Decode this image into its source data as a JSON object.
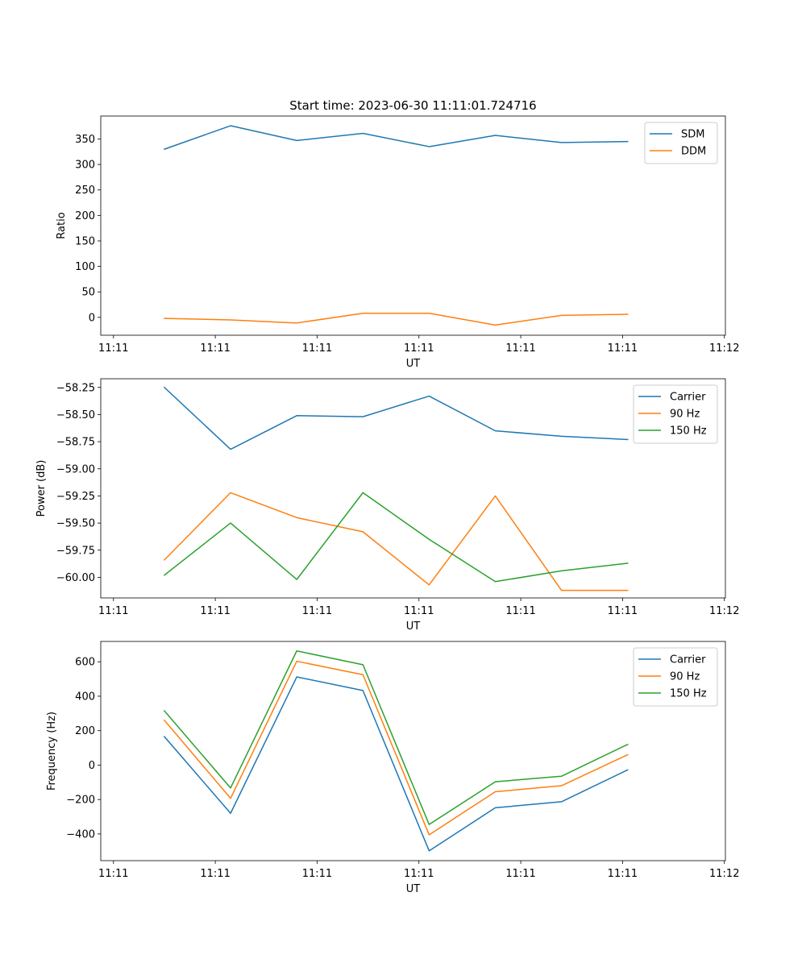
{
  "figure": {
    "title": "Start time: 2023-06-30 11:11:01.724716"
  },
  "chart_data": [
    {
      "type": "line",
      "xlabel": "UT",
      "ylabel": "Ratio",
      "x_tick_labels": [
        "11:11",
        "11:11",
        "11:11",
        "11:11",
        "11:11",
        "11:11",
        "11:12"
      ],
      "x_ticks": [
        0,
        1,
        2,
        3,
        4,
        5,
        6
      ],
      "xlim": [
        -0.125,
        6.01
      ],
      "x": [
        0.5,
        1.15,
        1.8,
        2.45,
        3.1,
        3.75,
        4.4,
        5.05
      ],
      "ylim": [
        -35,
        395
      ],
      "y_ticks": [
        0,
        50,
        100,
        150,
        200,
        250,
        300,
        350
      ],
      "legend_position": "upper right",
      "series": [
        {
          "name": "SDM",
          "color": "#1f77b4",
          "values": [
            330,
            376,
            347,
            361,
            335,
            357,
            343,
            345
          ]
        },
        {
          "name": "DDM",
          "color": "#ff7f0e",
          "values": [
            -2,
            -5,
            -11,
            8,
            8,
            -15,
            4,
            6
          ]
        }
      ]
    },
    {
      "type": "line",
      "xlabel": "UT",
      "ylabel": "Power (dB)",
      "x_tick_labels": [
        "11:11",
        "11:11",
        "11:11",
        "11:11",
        "11:11",
        "11:11",
        "11:12"
      ],
      "x_ticks": [
        0,
        1,
        2,
        3,
        4,
        5,
        6
      ],
      "xlim": [
        -0.125,
        6.01
      ],
      "x": [
        0.5,
        1.15,
        1.8,
        2.45,
        3.1,
        3.75,
        4.4,
        5.05
      ],
      "ylim": [
        -60.19,
        -58.17
      ],
      "y_ticks": [
        -60.0,
        -59.75,
        -59.5,
        -59.25,
        -59.0,
        -58.75,
        -58.5,
        -58.25
      ],
      "y_tick_labels": [
        "−60.00",
        "−59.75",
        "−59.50",
        "−59.25",
        "−59.00",
        "−58.75",
        "−58.50",
        "−58.25"
      ],
      "legend_position": "upper right",
      "series": [
        {
          "name": "Carrier",
          "color": "#1f77b4",
          "values": [
            -58.25,
            -58.82,
            -58.51,
            -58.52,
            -58.33,
            -58.65,
            -58.7,
            -58.73
          ]
        },
        {
          "name": "90 Hz",
          "color": "#ff7f0e",
          "values": [
            -59.84,
            -59.22,
            -59.45,
            -59.58,
            -60.07,
            -59.25,
            -60.12,
            -60.12
          ]
        },
        {
          "name": "150 Hz",
          "color": "#2ca02c",
          "values": [
            -59.98,
            -59.5,
            -60.02,
            -59.22,
            -59.65,
            -60.04,
            -59.94,
            -59.87
          ]
        }
      ]
    },
    {
      "type": "line",
      "xlabel": "UT",
      "ylabel": "Frequency (Hz)",
      "x_tick_labels": [
        "11:11",
        "11:11",
        "11:11",
        "11:11",
        "11:11",
        "11:11",
        "11:12"
      ],
      "x_ticks": [
        0,
        1,
        2,
        3,
        4,
        5,
        6
      ],
      "xlim": [
        -0.125,
        6.01
      ],
      "x": [
        0.5,
        1.15,
        1.8,
        2.45,
        3.1,
        3.75,
        4.4,
        5.05
      ],
      "ylim": [
        -555,
        718
      ],
      "y_ticks": [
        -400,
        -200,
        0,
        200,
        400,
        600
      ],
      "y_tick_labels": [
        "−400",
        "−200",
        "0",
        "200",
        "400",
        "600"
      ],
      "legend_position": "upper right",
      "series": [
        {
          "name": "Carrier",
          "color": "#1f77b4",
          "values": [
            165,
            -280,
            512,
            433,
            -498,
            -248,
            -213,
            -28
          ]
        },
        {
          "name": "90 Hz",
          "color": "#ff7f0e",
          "values": [
            260,
            -193,
            603,
            525,
            -405,
            -155,
            -120,
            60
          ]
        },
        {
          "name": "150 Hz",
          "color": "#2ca02c",
          "values": [
            315,
            -133,
            663,
            583,
            -345,
            -97,
            -65,
            120
          ]
        }
      ]
    }
  ]
}
